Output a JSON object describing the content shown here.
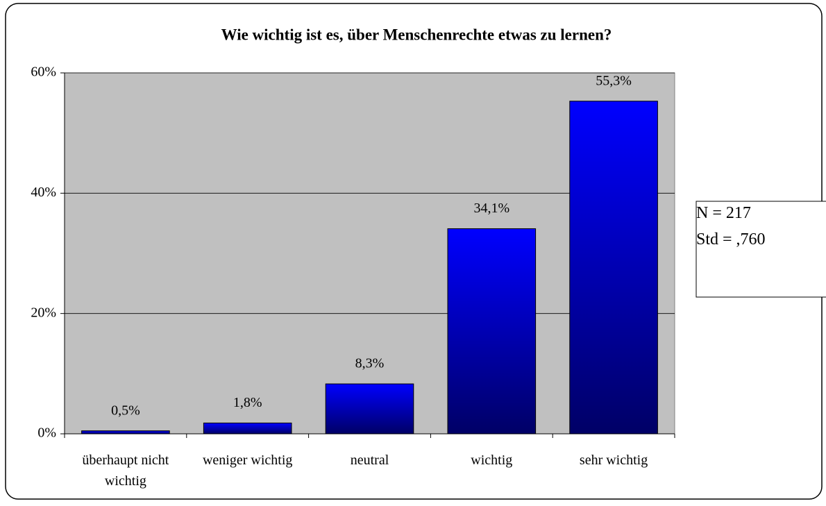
{
  "chart_data": {
    "type": "bar",
    "title": "Wie wichtig ist es, über Menschenrechte etwas zu lernen?",
    "categories": [
      "überhaupt nicht wichtig",
      "weniger wichtig",
      "neutral",
      "wichtig",
      "sehr wichtig"
    ],
    "values": [
      0.5,
      1.8,
      8.3,
      34.1,
      55.3
    ],
    "value_labels": [
      "0,5%",
      "1,8%",
      "8,3%",
      "34,1%",
      "55,3%"
    ],
    "gradient": [
      "#0000ff",
      "#000066"
    ],
    "plot_background": "#c0c0c0",
    "ylim": [
      0,
      60
    ],
    "yticks": [
      {
        "value": 0,
        "label": "0%"
      },
      {
        "value": 20,
        "label": "20%"
      },
      {
        "value": 40,
        "label": "40%"
      },
      {
        "value": 60,
        "label": "60%"
      }
    ],
    "grid": true,
    "annotation": [
      "N = 217",
      "Std = ,760"
    ]
  }
}
